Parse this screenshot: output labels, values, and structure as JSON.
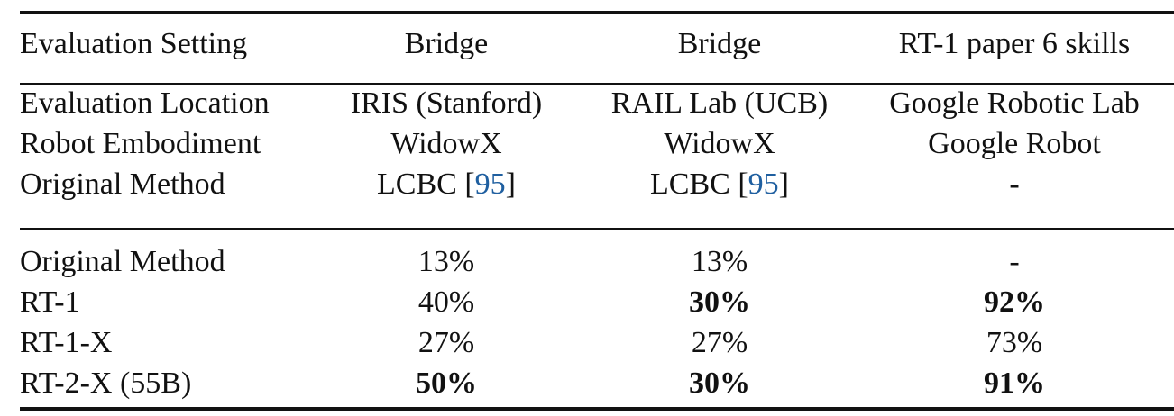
{
  "columns": [
    "Evaluation Setting",
    "Bridge",
    "Bridge",
    "RT-1 paper 6 skills"
  ],
  "meta_rows": [
    {
      "label": "Evaluation Location",
      "values": [
        "IRIS (Stanford)",
        "RAIL Lab (UCB)",
        "Google Robotic Lab"
      ]
    },
    {
      "label": "Robot Embodiment",
      "values": [
        "WidowX",
        "WidowX",
        "Google Robot"
      ]
    },
    {
      "label": "Original Method",
      "values": [
        "LCBC [95]",
        "LCBC [95]",
        "-"
      ],
      "citation": "95"
    }
  ],
  "result_rows": [
    {
      "label": "Original Method",
      "values": [
        "13%",
        "13%",
        "-"
      ],
      "bold": [
        false,
        false,
        false
      ]
    },
    {
      "label": "RT-1",
      "values": [
        "40%",
        "30%",
        "92%"
      ],
      "bold": [
        false,
        true,
        true
      ]
    },
    {
      "label": "RT-1-X",
      "values": [
        "27%",
        "27%",
        "73%"
      ],
      "bold": [
        false,
        false,
        false
      ]
    },
    {
      "label": "RT-2-X (55B)",
      "values": [
        "50%",
        "30%",
        "91%"
      ],
      "bold": [
        true,
        true,
        true
      ]
    }
  ],
  "colors": {
    "text": "#111111",
    "citation_link": "#1f5fa0",
    "background": "#ffffff"
  }
}
